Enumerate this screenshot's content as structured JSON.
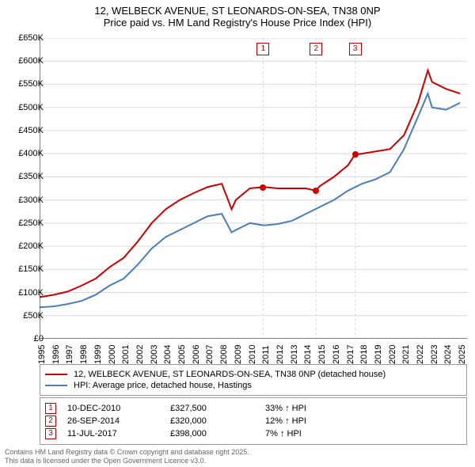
{
  "title": {
    "line1": "12, WELBECK AVENUE, ST LEONARDS-ON-SEA, TN38 0NP",
    "line2": "Price paid vs. HM Land Registry's House Price Index (HPI)"
  },
  "chart": {
    "type": "line",
    "background_color": "#ffffff",
    "grid_color": "#d9d9d9",
    "axis_color": "#000000",
    "xlim": [
      1995,
      2025.5
    ],
    "ylim": [
      0,
      650
    ],
    "ytick_step": 50,
    "yticks": [
      "£0",
      "£50K",
      "£100K",
      "£150K",
      "£200K",
      "£250K",
      "£300K",
      "£350K",
      "£400K",
      "£450K",
      "£500K",
      "£550K",
      "£600K",
      "£650K"
    ],
    "xticks": [
      1995,
      1996,
      1997,
      1998,
      1999,
      2000,
      2001,
      2002,
      2003,
      2004,
      2005,
      2006,
      2007,
      2008,
      2009,
      2010,
      2011,
      2012,
      2013,
      2014,
      2015,
      2016,
      2017,
      2018,
      2019,
      2020,
      2021,
      2022,
      2023,
      2024,
      2025
    ],
    "series": [
      {
        "name": "price_paid",
        "label": "12, WELBECK AVENUE, ST LEONARDS-ON-SEA, TN38 0NP (detached house)",
        "color": "#cc0000",
        "line_width": 2,
        "x": [
          1995,
          1996,
          1997,
          1998,
          1999,
          2000,
          2001,
          2002,
          2003,
          2004,
          2005,
          2006,
          2007,
          2008,
          2008.7,
          2009,
          2010,
          2011,
          2012,
          2013,
          2014,
          2014.7,
          2015,
          2016,
          2017,
          2017.5,
          2018,
          2019,
          2020,
          2021,
          2022,
          2022.7,
          2023,
          2024,
          2025
        ],
        "y": [
          90,
          95,
          102,
          115,
          130,
          155,
          175,
          210,
          250,
          280,
          300,
          315,
          328,
          335,
          280,
          300,
          325,
          328,
          325,
          325,
          325,
          320,
          330,
          350,
          375,
          398,
          400,
          405,
          410,
          440,
          510,
          580,
          555,
          540,
          530
        ]
      },
      {
        "name": "hpi",
        "label": "HPI: Average price, detached house, Hastings",
        "color": "#4a7ebb",
        "line_width": 2,
        "x": [
          1995,
          1996,
          1997,
          1998,
          1999,
          2000,
          2001,
          2002,
          2003,
          2004,
          2005,
          2006,
          2007,
          2008,
          2008.7,
          2009,
          2010,
          2011,
          2012,
          2013,
          2014,
          2015,
          2016,
          2017,
          2018,
          2019,
          2020,
          2021,
          2022,
          2022.7,
          2023,
          2024,
          2025
        ],
        "y": [
          68,
          70,
          75,
          82,
          95,
          115,
          130,
          160,
          195,
          220,
          235,
          250,
          265,
          270,
          230,
          235,
          250,
          245,
          248,
          255,
          270,
          285,
          300,
          320,
          335,
          345,
          360,
          410,
          480,
          530,
          500,
          495,
          510
        ]
      }
    ],
    "markers": [
      {
        "id": "1",
        "x": 2010.95,
        "y_dot": 327.5,
        "dot_color": "#cc0000"
      },
      {
        "id": "2",
        "x": 2014.73,
        "y_dot": 320.0,
        "dot_color": "#cc0000"
      },
      {
        "id": "3",
        "x": 2017.52,
        "y_dot": 398.0,
        "dot_color": "#cc0000"
      }
    ],
    "label_fontsize": 11,
    "title_fontsize": 13
  },
  "legend": {
    "items": [
      {
        "color": "#cc0000",
        "label": "12, WELBECK AVENUE, ST LEONARDS-ON-SEA, TN38 0NP (detached house)"
      },
      {
        "color": "#4a7ebb",
        "label": "HPI: Average price, detached house, Hastings"
      }
    ]
  },
  "events": [
    {
      "id": "1",
      "date": "10-DEC-2010",
      "price": "£327,500",
      "delta": "33% ↑ HPI"
    },
    {
      "id": "2",
      "date": "26-SEP-2014",
      "price": "£320,000",
      "delta": "12% ↑ HPI"
    },
    {
      "id": "3",
      "date": "11-JUL-2017",
      "price": "£398,000",
      "delta": "7% ↑ HPI"
    }
  ],
  "footer": {
    "line1": "Contains HM Land Registry data © Crown copyright and database right 2025.",
    "line2": "This data is licensed under the Open Government Licence v3.0."
  }
}
